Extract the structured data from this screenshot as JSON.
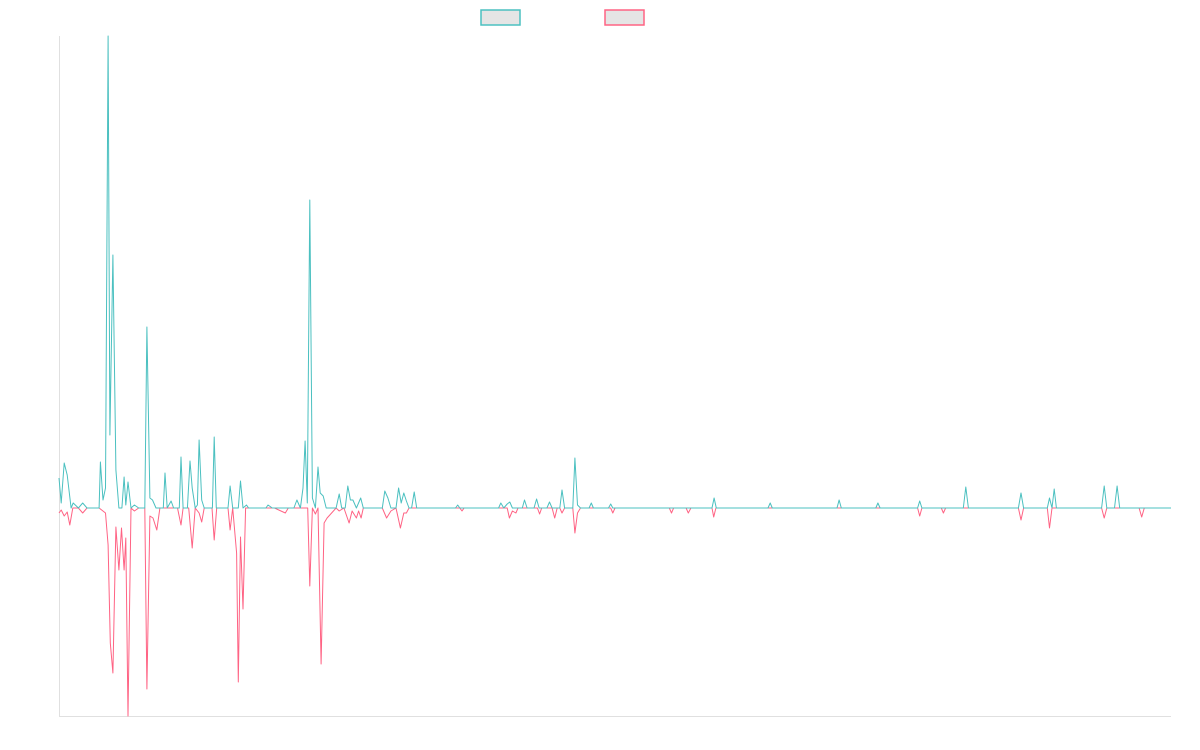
{
  "chart_data": {
    "type": "line",
    "title": "",
    "xlabel": "",
    "ylabel": "",
    "xlim": [
      0,
      258
    ],
    "ylim": [
      -208,
      472
    ],
    "grid": false,
    "legend": {
      "placement": "top-center",
      "entries": [
        {
          "name": "",
          "color": "#4bc0c0"
        },
        {
          "name": "",
          "color": "#ff6384"
        }
      ]
    },
    "series": [
      {
        "name": "",
        "color": "#4bc0c0",
        "points": [
          [
            0,
            30
          ],
          [
            0.5,
            5
          ],
          [
            1.2,
            45
          ],
          [
            1.9,
            33
          ],
          [
            2.8,
            0
          ],
          [
            3.3,
            5
          ],
          [
            4.5,
            0
          ],
          [
            5.5,
            5
          ],
          [
            6.5,
            0
          ],
          [
            9.3,
            0
          ],
          [
            9.6,
            46
          ],
          [
            10.2,
            8
          ],
          [
            10.8,
            20
          ],
          [
            11.4,
            472
          ],
          [
            11.8,
            73
          ],
          [
            12.5,
            253
          ],
          [
            13.2,
            38
          ],
          [
            13.9,
            0
          ],
          [
            14.6,
            0
          ],
          [
            15.1,
            31
          ],
          [
            15.5,
            3
          ],
          [
            16,
            26
          ],
          [
            16.7,
            0
          ],
          [
            17.5,
            3
          ],
          [
            18.5,
            0
          ],
          [
            19.9,
            0
          ],
          [
            20.4,
            181
          ],
          [
            21.1,
            10
          ],
          [
            21.7,
            8
          ],
          [
            22.5,
            0
          ],
          [
            24.2,
            0
          ],
          [
            24.6,
            35
          ],
          [
            25.1,
            0
          ],
          [
            26,
            7
          ],
          [
            26.6,
            0
          ],
          [
            27.9,
            0
          ],
          [
            28.3,
            51
          ],
          [
            28.8,
            0
          ],
          [
            29.8,
            0
          ],
          [
            30.4,
            47
          ],
          [
            30.9,
            20
          ],
          [
            31.6,
            0
          ],
          [
            32.1,
            3
          ],
          [
            32.5,
            68
          ],
          [
            33.1,
            8
          ],
          [
            33.7,
            0
          ],
          [
            35.6,
            0
          ],
          [
            36,
            71
          ],
          [
            36.5,
            0
          ],
          [
            39.2,
            0
          ],
          [
            39.7,
            22
          ],
          [
            40.3,
            0
          ],
          [
            41.6,
            0
          ],
          [
            42.1,
            27
          ],
          [
            42.7,
            0
          ],
          [
            43.5,
            3
          ],
          [
            44,
            0
          ],
          [
            48,
            0
          ],
          [
            48.5,
            3
          ],
          [
            49.5,
            0
          ],
          [
            54.5,
            0
          ],
          [
            55.2,
            8
          ],
          [
            56,
            0
          ],
          [
            56.6,
            20
          ],
          [
            57.1,
            67
          ],
          [
            57.6,
            5
          ],
          [
            58.2,
            308
          ],
          [
            58.8,
            10
          ],
          [
            59.5,
            0
          ],
          [
            60.1,
            41
          ],
          [
            60.6,
            15
          ],
          [
            61.3,
            12
          ],
          [
            62,
            0
          ],
          [
            64.3,
            0
          ],
          [
            65,
            14
          ],
          [
            65.6,
            0
          ],
          [
            66.4,
            0
          ],
          [
            67,
            22
          ],
          [
            67.6,
            8
          ],
          [
            68.2,
            8
          ],
          [
            69,
            0
          ],
          [
            70,
            10
          ],
          [
            70.6,
            0
          ],
          [
            75,
            0
          ],
          [
            75.6,
            17
          ],
          [
            76.3,
            10
          ],
          [
            77,
            0
          ],
          [
            78.2,
            0
          ],
          [
            78.8,
            20
          ],
          [
            79.4,
            5
          ],
          [
            80,
            15
          ],
          [
            80.6,
            7
          ],
          [
            81.2,
            0
          ],
          [
            81.8,
            0
          ],
          [
            82.4,
            16
          ],
          [
            83,
            0
          ],
          [
            92,
            0
          ],
          [
            92.5,
            3
          ],
          [
            93,
            0
          ],
          [
            102,
            0
          ],
          [
            102.5,
            5
          ],
          [
            103.2,
            0
          ],
          [
            104,
            4
          ],
          [
            104.6,
            6
          ],
          [
            105.2,
            0
          ],
          [
            107.5,
            0
          ],
          [
            108,
            8
          ],
          [
            108.6,
            0
          ],
          [
            110.2,
            0
          ],
          [
            110.8,
            9
          ],
          [
            111.4,
            0
          ],
          [
            113.2,
            0
          ],
          [
            113.8,
            6
          ],
          [
            114.4,
            0
          ],
          [
            116.2,
            0
          ],
          [
            116.7,
            18
          ],
          [
            117.3,
            0
          ],
          [
            119.2,
            0
          ],
          [
            119.7,
            50
          ],
          [
            120.3,
            3
          ],
          [
            121,
            0
          ],
          [
            123,
            0
          ],
          [
            123.5,
            5
          ],
          [
            124,
            0
          ],
          [
            127.5,
            0
          ],
          [
            128,
            4
          ],
          [
            128.5,
            0
          ],
          [
            151.5,
            0
          ],
          [
            152,
            10
          ],
          [
            152.5,
            0
          ],
          [
            164.5,
            0
          ],
          [
            165,
            5
          ],
          [
            165.5,
            0
          ],
          [
            180.5,
            0
          ],
          [
            181,
            8
          ],
          [
            181.5,
            0
          ],
          [
            189.5,
            0
          ],
          [
            190,
            5
          ],
          [
            190.5,
            0
          ],
          [
            199.2,
            0
          ],
          [
            199.7,
            7
          ],
          [
            200.2,
            0
          ],
          [
            209.8,
            0
          ],
          [
            210.4,
            21
          ],
          [
            211,
            0
          ],
          [
            222.6,
            0
          ],
          [
            223.2,
            15
          ],
          [
            223.8,
            0
          ],
          [
            229.3,
            0
          ],
          [
            229.8,
            10
          ],
          [
            230.4,
            0
          ],
          [
            230.9,
            19
          ],
          [
            231.4,
            0
          ],
          [
            241.9,
            0
          ],
          [
            242.5,
            22
          ],
          [
            243.1,
            0
          ],
          [
            244.9,
            0
          ],
          [
            245.5,
            22
          ],
          [
            246.1,
            0
          ],
          [
            258,
            0
          ]
        ]
      },
      {
        "name": "",
        "color": "#ff6384",
        "points": [
          [
            0,
            -5
          ],
          [
            0.5,
            -2
          ],
          [
            1.2,
            -8
          ],
          [
            1.9,
            -4
          ],
          [
            2.5,
            -17
          ],
          [
            3.2,
            0
          ],
          [
            4.5,
            0
          ],
          [
            5.5,
            -5
          ],
          [
            6.5,
            0
          ],
          [
            9.3,
            0
          ],
          [
            10.8,
            -5
          ],
          [
            11.4,
            -37
          ],
          [
            11.9,
            -135
          ],
          [
            12.5,
            -165
          ],
          [
            13.2,
            -19
          ],
          [
            13.9,
            -62
          ],
          [
            14.5,
            -20
          ],
          [
            15.1,
            -62
          ],
          [
            15.5,
            -30
          ],
          [
            16,
            -208
          ],
          [
            16.7,
            0
          ],
          [
            17.5,
            -3
          ],
          [
            18.5,
            0
          ],
          [
            19.9,
            0
          ],
          [
            20.4,
            -181
          ],
          [
            21.1,
            -8
          ],
          [
            21.8,
            -10
          ],
          [
            22.7,
            -22
          ],
          [
            23.4,
            0
          ],
          [
            27.5,
            0
          ],
          [
            28.3,
            -17
          ],
          [
            28.8,
            0
          ],
          [
            30.1,
            0
          ],
          [
            30.9,
            -40
          ],
          [
            31.6,
            0
          ],
          [
            32.5,
            -5
          ],
          [
            33.1,
            -14
          ],
          [
            33.7,
            0
          ],
          [
            35.5,
            0
          ],
          [
            36,
            -32
          ],
          [
            36.6,
            0
          ],
          [
            39.2,
            0
          ],
          [
            39.7,
            -22
          ],
          [
            40.3,
            0
          ],
          [
            41.2,
            -45
          ],
          [
            41.6,
            -174
          ],
          [
            42.1,
            -29
          ],
          [
            42.7,
            -101
          ],
          [
            43.3,
            0
          ],
          [
            50,
            0
          ],
          [
            52.5,
            -5
          ],
          [
            53.2,
            0
          ],
          [
            57.1,
            0
          ],
          [
            57.7,
            0
          ],
          [
            58.2,
            -78
          ],
          [
            58.8,
            0
          ],
          [
            59.5,
            -6
          ],
          [
            60.1,
            0
          ],
          [
            60.8,
            -156
          ],
          [
            61.5,
            -15
          ],
          [
            62.2,
            -10
          ],
          [
            64.3,
            0
          ],
          [
            65,
            -3
          ],
          [
            66.1,
            0
          ],
          [
            67.3,
            -15
          ],
          [
            68,
            -3
          ],
          [
            69,
            -10
          ],
          [
            69.5,
            -3
          ],
          [
            70.1,
            -10
          ],
          [
            70.6,
            0
          ],
          [
            75,
            0
          ],
          [
            76,
            -10
          ],
          [
            77,
            -3
          ],
          [
            78.2,
            0
          ],
          [
            79.2,
            -20
          ],
          [
            80,
            -5
          ],
          [
            80.6,
            -5
          ],
          [
            81.2,
            0
          ],
          [
            93,
            0
          ],
          [
            93.5,
            -3
          ],
          [
            94,
            0
          ],
          [
            104,
            0
          ],
          [
            104.5,
            -10
          ],
          [
            105.2,
            -3
          ],
          [
            106,
            -5
          ],
          [
            106.5,
            0
          ],
          [
            111,
            0
          ],
          [
            111.5,
            -6
          ],
          [
            112,
            0
          ],
          [
            114.4,
            0
          ],
          [
            115,
            -10
          ],
          [
            115.6,
            0
          ],
          [
            116.2,
            0
          ],
          [
            116.7,
            -5
          ],
          [
            117.3,
            0
          ],
          [
            119.2,
            0
          ],
          [
            119.7,
            -25
          ],
          [
            120.3,
            -5
          ],
          [
            121,
            0
          ],
          [
            128,
            0
          ],
          [
            128.5,
            -5
          ],
          [
            129,
            0
          ],
          [
            141.6,
            0
          ],
          [
            142.1,
            -5
          ],
          [
            142.6,
            0
          ],
          [
            145.5,
            0
          ],
          [
            146,
            -5
          ],
          [
            146.6,
            0
          ],
          [
            151.5,
            0
          ],
          [
            151.9,
            -9
          ],
          [
            152.4,
            0
          ],
          [
            199.2,
            0
          ],
          [
            199.7,
            -8
          ],
          [
            200.2,
            0
          ],
          [
            204.7,
            0
          ],
          [
            205.2,
            -5
          ],
          [
            205.7,
            0
          ],
          [
            222.6,
            0
          ],
          [
            223.2,
            -12
          ],
          [
            223.8,
            0
          ],
          [
            229.3,
            0
          ],
          [
            229.8,
            -20
          ],
          [
            230.4,
            0
          ],
          [
            241.9,
            0
          ],
          [
            242.5,
            -10
          ],
          [
            243.1,
            0
          ],
          [
            250.6,
            0
          ],
          [
            251.2,
            -9
          ],
          [
            251.8,
            0
          ],
          [
            258,
            0
          ]
        ]
      }
    ]
  }
}
